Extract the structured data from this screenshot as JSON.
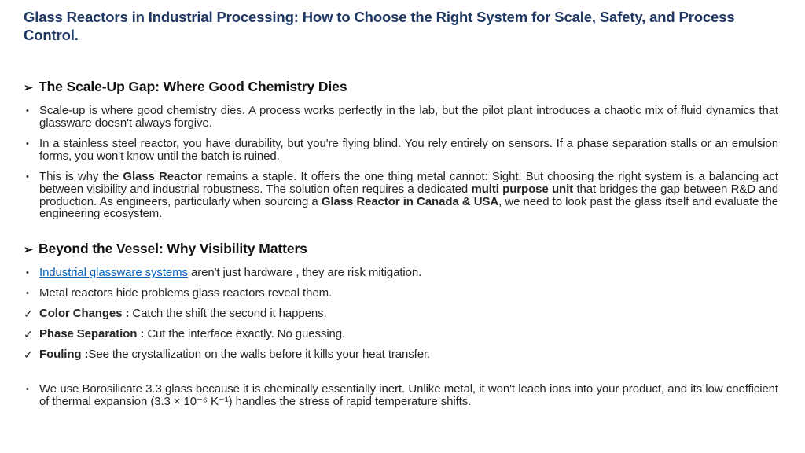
{
  "slide": {
    "title": "Glass Reactors in Industrial Processing: How to Choose the Right System for Scale, Safety, and Process Control.",
    "colors": {
      "background": "#FFFFFF",
      "title": "#1F3864",
      "body": "#262626",
      "heading": "#111111",
      "link": "#0563C1"
    },
    "markers": {
      "arrow": "➢",
      "dot": "•",
      "check": "✓"
    }
  },
  "section1": {
    "heading": "The Scale-Up Gap: Where Good Chemistry Dies",
    "bullet1": "Scale-up is where good chemistry dies. A process works perfectly in the lab, but the pilot plant introduces a chaotic mix of fluid dynamics that glassware doesn't always forgive.",
    "bullet2": "In a stainless steel reactor, you have durability, but you're flying blind. You rely entirely on sensors. If a phase separation stalls or an emulsion forms, you won't know until the batch is ruined.",
    "bullet3": {
      "seg1": "This is why the ",
      "seg2_bold": "Glass Reactor",
      "seg3": " remains a staple. It offers the one thing metal cannot: Sight. But choosing the right system is a balancing act between visibility and industrial robustness. The solution often requires a dedicated ",
      "seg4_bold": "multi purpose unit",
      "seg5": " that bridges the gap between R&D and production. As engineers, particularly when sourcing a ",
      "seg6_bold": "Glass Reactor in Canada & USA",
      "seg7": ", we need to look past the glass itself and evaluate the engineering ecosystem."
    }
  },
  "section2": {
    "heading": "Beyond the Vessel: Why Visibility Matters",
    "bullet1": {
      "link_text": "Industrial glassware systems",
      "rest": " aren't just hardware , they are risk mitigation."
    },
    "bullet2": "Metal reactors hide problems glass reactors reveal them.",
    "check1": {
      "label": "Color Changes :",
      "text": " Catch the shift the second it happens."
    },
    "check2": {
      "label": "Phase Separation :",
      "text": " Cut the interface exactly. No guessing."
    },
    "check3": {
      "label": "Fouling :",
      "text": "See the crystallization on the walls before it kills your heat transfer."
    }
  },
  "closing": {
    "bullet": "We use Borosilicate 3.3 glass because it is chemically essentially inert. Unlike metal, it won't leach ions into your product, and its low coefficient of thermal expansion (3.3 × 10⁻⁶ K⁻¹) handles the stress of rapid temperature shifts."
  }
}
